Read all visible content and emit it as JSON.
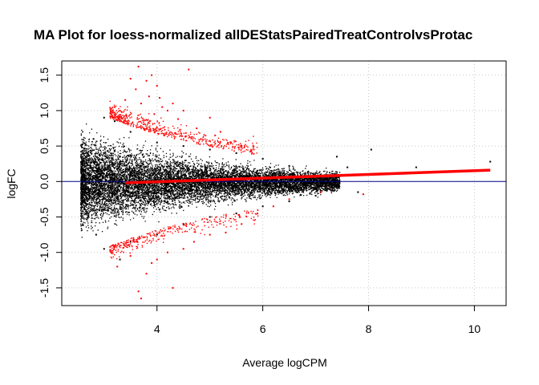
{
  "chart_data": {
    "type": "scatter",
    "title": "MA Plot for loess-normalized allDEStatsPairedTreatControlvsProtac",
    "xlabel": "Average logCPM",
    "ylabel": "logFC",
    "xlim": [
      2.2,
      10.6
    ],
    "ylim": [
      -1.75,
      1.7
    ],
    "x_ticks": [
      4,
      6,
      8,
      10
    ],
    "y_ticks": [
      -1.5,
      -1.0,
      -0.5,
      0.0,
      0.5,
      1.0,
      1.5
    ],
    "x_tick_labels": [
      "4",
      "6",
      "8",
      "10"
    ],
    "y_tick_labels": [
      "-1.5",
      "-1.0",
      "-0.5",
      "0.0",
      "0.5",
      "1.0",
      "1.5"
    ],
    "grid": true,
    "hline": {
      "y": 0.0,
      "color": "#00008b"
    },
    "colors": {
      "not_significant": "#000000",
      "significant": "#ff0000",
      "trend": "#ff0000",
      "grid": "#c8c8c8"
    },
    "series": [
      {
        "role": "not_significant",
        "points": [
          [
            2.6,
            -0.05
          ],
          [
            2.65,
            0.35
          ],
          [
            2.7,
            -0.5
          ],
          [
            2.8,
            0.6
          ],
          [
            2.85,
            -0.75
          ],
          [
            3.0,
            0.9
          ],
          [
            3.0,
            -0.95
          ],
          [
            3.2,
            0.85
          ],
          [
            3.3,
            -1.1
          ],
          [
            3.5,
            0.7
          ],
          [
            3.5,
            -0.85
          ],
          [
            4.0,
            0.55
          ],
          [
            4.0,
            -0.75
          ],
          [
            4.5,
            0.5
          ],
          [
            4.5,
            -0.6
          ],
          [
            5.0,
            0.45
          ],
          [
            5.0,
            -0.5
          ],
          [
            5.5,
            0.4
          ],
          [
            5.5,
            -0.45
          ],
          [
            6.0,
            0.32
          ],
          [
            6.0,
            -0.35
          ],
          [
            6.5,
            0.22
          ],
          [
            6.5,
            -0.28
          ],
          [
            7.0,
            0.12
          ],
          [
            7.0,
            -0.2
          ],
          [
            7.4,
            0.35
          ],
          [
            7.6,
            0.2
          ],
          [
            7.8,
            -0.15
          ],
          [
            8.05,
            0.45
          ],
          [
            8.9,
            0.2
          ],
          [
            10.3,
            0.28
          ]
        ]
      },
      {
        "role": "significant",
        "points": [
          [
            3.2,
            1.05
          ],
          [
            3.3,
            1.0
          ],
          [
            3.4,
            1.15
          ],
          [
            3.5,
            1.45
          ],
          [
            3.6,
            1.3
          ],
          [
            3.65,
            1.62
          ],
          [
            3.7,
            1.1
          ],
          [
            3.8,
            1.42
          ],
          [
            3.85,
            1.2
          ],
          [
            3.9,
            1.5
          ],
          [
            3.95,
            0.95
          ],
          [
            4.0,
            1.35
          ],
          [
            4.05,
            1.18
          ],
          [
            4.1,
            1.05
          ],
          [
            4.2,
            1.0
          ],
          [
            4.3,
            1.1
          ],
          [
            4.4,
            0.88
          ],
          [
            4.5,
            1.0
          ],
          [
            4.6,
            1.58
          ],
          [
            4.75,
            0.75
          ],
          [
            5.0,
            0.9
          ],
          [
            5.1,
            0.65
          ],
          [
            5.2,
            0.7
          ],
          [
            5.4,
            0.55
          ],
          [
            5.6,
            0.5
          ],
          [
            3.25,
            -1.2
          ],
          [
            3.5,
            -1.05
          ],
          [
            3.65,
            -1.55
          ],
          [
            3.7,
            -1.65
          ],
          [
            3.8,
            -1.3
          ],
          [
            3.9,
            -1.15
          ],
          [
            4.0,
            -1.1
          ],
          [
            4.2,
            -1.0
          ],
          [
            4.3,
            -1.5
          ],
          [
            4.5,
            -0.95
          ],
          [
            4.7,
            -0.85
          ],
          [
            5.0,
            -0.75
          ],
          [
            5.3,
            -0.72
          ],
          [
            5.6,
            -0.6
          ],
          [
            5.9,
            -0.45
          ],
          [
            6.2,
            -0.35
          ],
          [
            6.5,
            -0.25
          ],
          [
            7.1,
            -0.15
          ],
          [
            7.9,
            -0.18
          ]
        ]
      }
    ],
    "trend": {
      "x": [
        3.4,
        10.3
      ],
      "y": [
        -0.02,
        0.16
      ]
    }
  }
}
